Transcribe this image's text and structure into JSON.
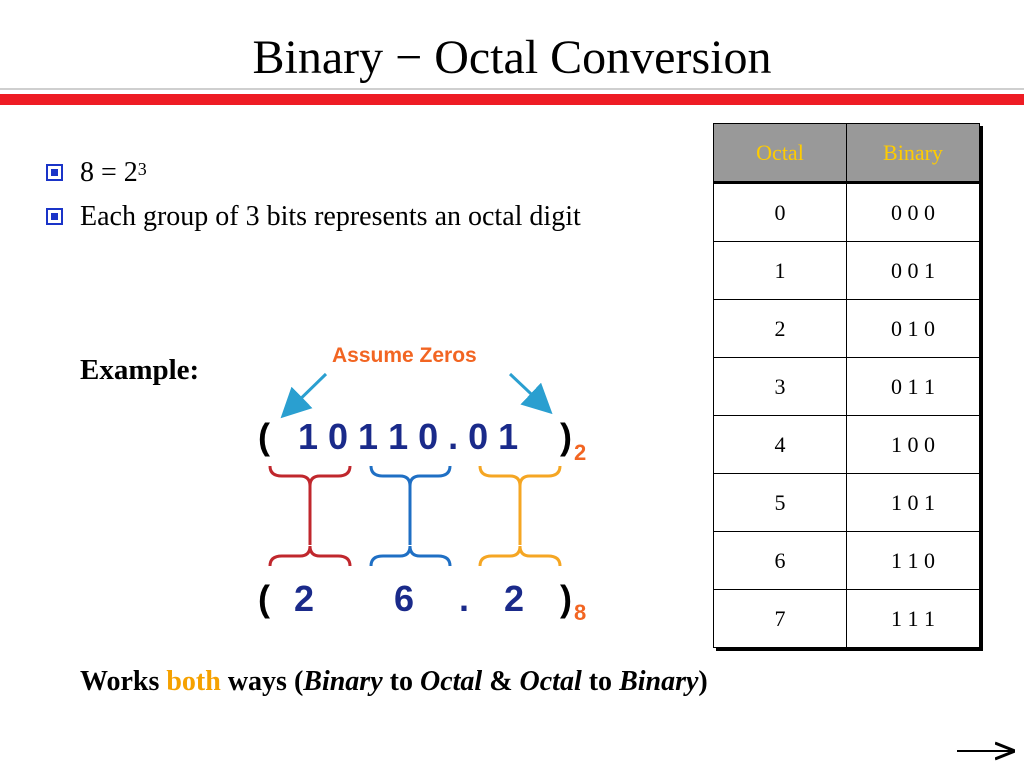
{
  "title": "Binary − Octal Conversion",
  "bullets": {
    "b1_base": "8 = 2",
    "b1_exp": "3",
    "b2": "Each group of 3 bits represents an octal digit"
  },
  "example_label": "Example:",
  "assume_label": "Assume Zeros",
  "binary_expr": {
    "open": "(",
    "digits": "1 0 1 1 0 . 0 1",
    "close": ")",
    "base": "2"
  },
  "octal_expr": {
    "open": "(",
    "d1": "2",
    "d2": "6",
    "dot": ".",
    "d3": "2",
    "close": ")",
    "base": "8"
  },
  "note": {
    "w1": "Works",
    "w2": "both",
    "w3": "ways (",
    "w4": "Binary",
    "w5": "to",
    "w6": "Octal",
    "w7": "&",
    "w8": "Octal",
    "w9": "to",
    "w10": "Binary",
    "w11": ")"
  },
  "table": {
    "headers": [
      "Octal",
      "Binary"
    ],
    "rows": [
      [
        "0",
        "0 0 0"
      ],
      [
        "1",
        "0 0 1"
      ],
      [
        "2",
        "0 1 0"
      ],
      [
        "3",
        "0 1 1"
      ],
      [
        "4",
        "1 0 0"
      ],
      [
        "5",
        "1 0 1"
      ],
      [
        "6",
        "1 1 0"
      ],
      [
        "7",
        "1 1 1"
      ]
    ]
  },
  "colors": {
    "accent_red": "#ee1c24",
    "bullet_blue": "#1a34c8",
    "brace_red": "#c0272d",
    "brace_blue": "#1f6fc4",
    "brace_orange": "#f5a623",
    "arrow_teal": "#2a9fd0",
    "highlight_orange": "#f26522"
  }
}
